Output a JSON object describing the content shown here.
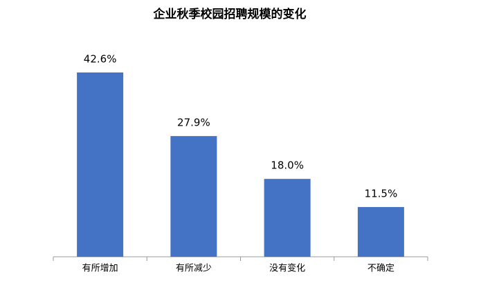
{
  "chart_data": {
    "type": "bar",
    "title": "企业秋季校园招聘规模的变化",
    "categories": [
      "有所增加",
      "有所减少",
      "没有变化",
      "不确定"
    ],
    "values": [
      42.6,
      27.9,
      18.0,
      11.5
    ],
    "value_labels": [
      "42.6%",
      "27.9%",
      "18.0%",
      "11.5%"
    ],
    "color": "#4472c4"
  }
}
